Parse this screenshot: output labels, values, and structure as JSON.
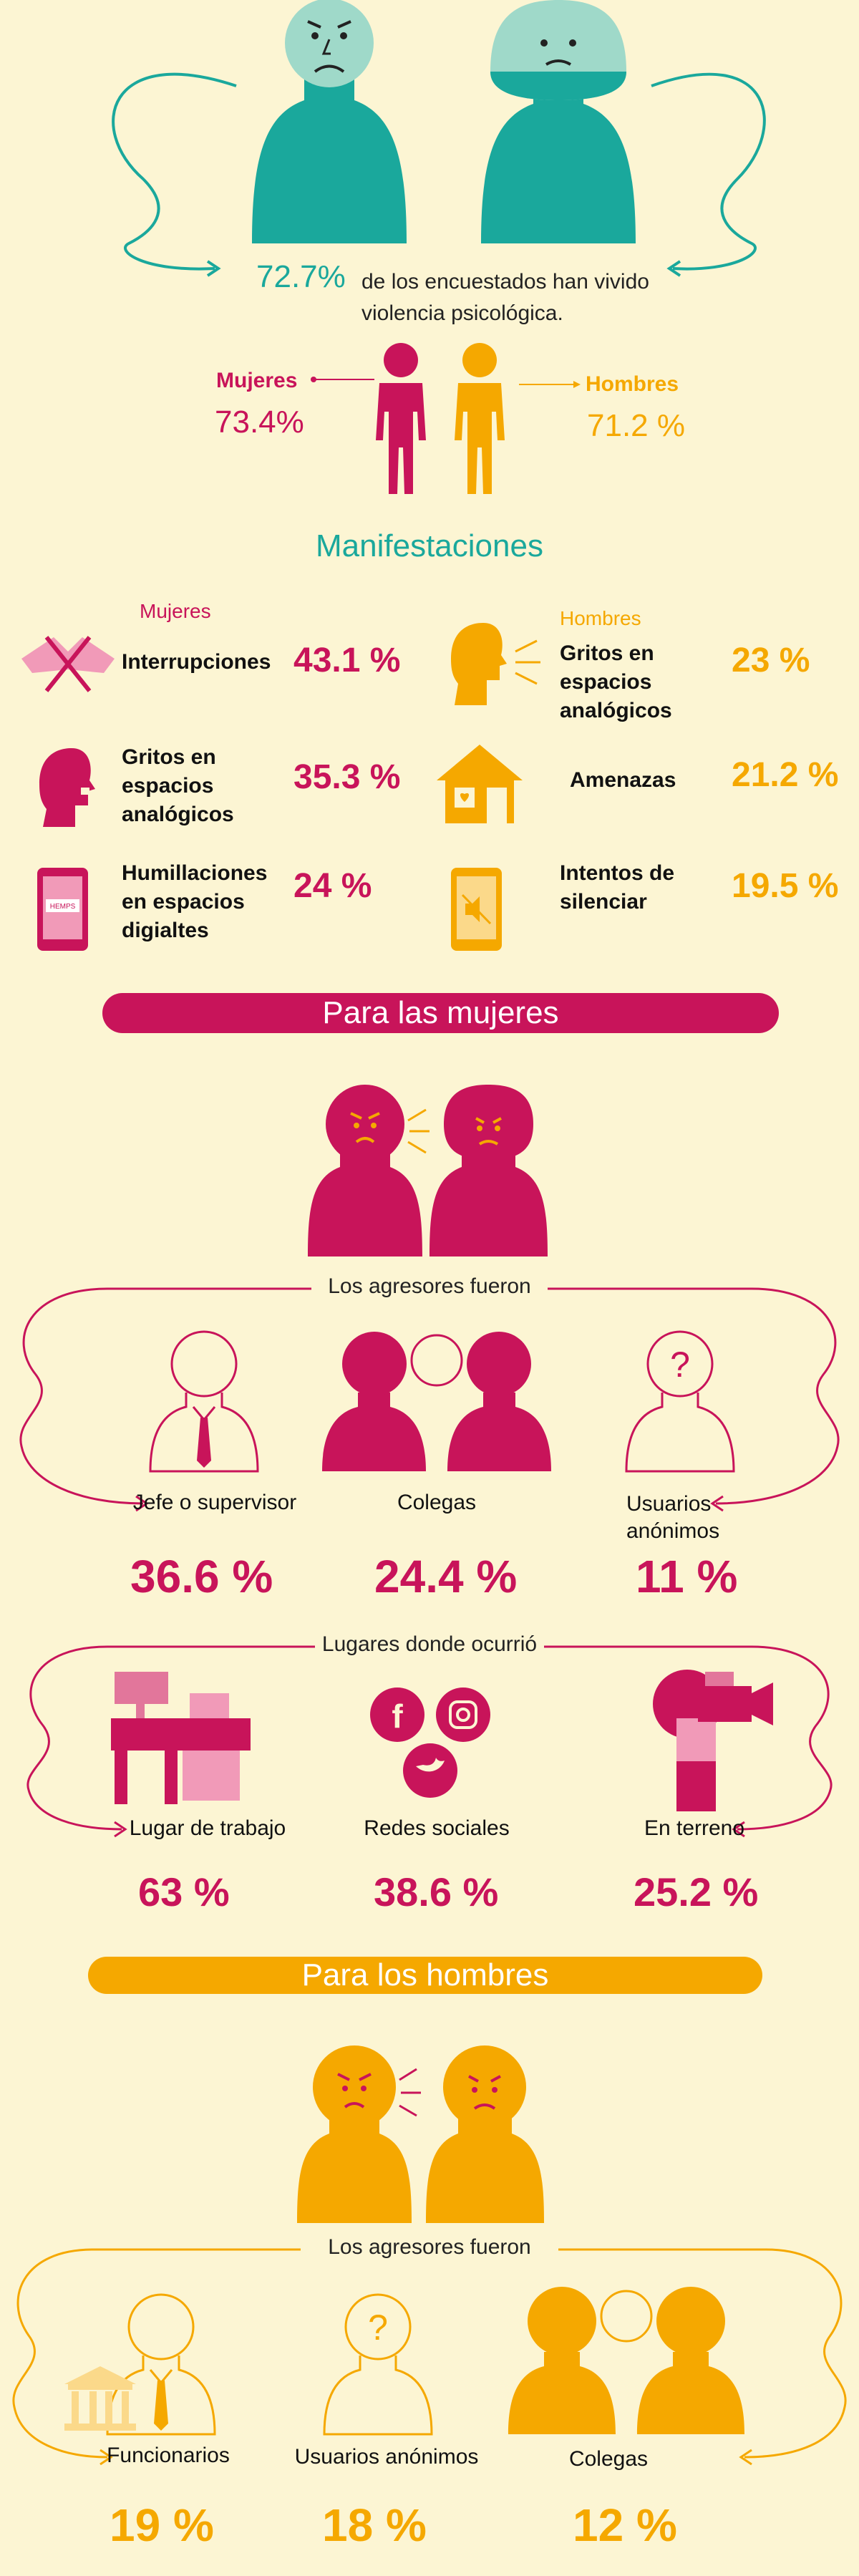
{
  "colors": {
    "background": "#fcf5d3",
    "teal": "#1aa89c",
    "light_teal": "#9fd9c9",
    "magenta": "#c8145a",
    "gold": "#f5a800",
    "pink": "#f19ab8"
  },
  "intro": {
    "percent": "72.7%",
    "text": "de los encuestados han vivido violencia psicológica."
  },
  "gender_split": {
    "women": {
      "label": "Mujeres",
      "percent": "73.4%"
    },
    "men": {
      "label": "Hombres",
      "percent": "71.2 %"
    }
  },
  "manifestaciones": {
    "title": "Manifestaciones",
    "women": {
      "label": "Mujeres",
      "items": [
        {
          "label": "Interrupciones",
          "percent": "43.1 %",
          "icon": "crossed-hands-icon"
        },
        {
          "label": "Gritos en espacios analógicos",
          "percent": "35.3 %",
          "icon": "shouting-head-icon"
        },
        {
          "label": "Humillaciones en espacios digialtes",
          "percent": "24 %",
          "icon": "phone-message-icon"
        }
      ]
    },
    "men": {
      "label": "Hombres",
      "items": [
        {
          "label": "Gritos en espacios analógicos",
          "percent": "23 %",
          "icon": "shouting-head-icon"
        },
        {
          "label": "Amenazas",
          "percent": "21.2 %",
          "icon": "house-heart-icon"
        },
        {
          "label": "Intentos de silenciar",
          "percent": "19.5 %",
          "icon": "phone-mute-icon"
        }
      ]
    }
  },
  "women_section": {
    "banner": "Para las mujeres",
    "aggressors_title": "Los agresores fueron",
    "aggressors": [
      {
        "label": "Jefe o supervisor",
        "percent": "36.6 %"
      },
      {
        "label": "Colegas",
        "percent": "24.4 %"
      },
      {
        "label": "Usuarios anónimos",
        "percent": "11 %"
      }
    ],
    "places_title": "Lugares donde ocurrió",
    "places": [
      {
        "label": "Lugar de trabajo",
        "percent": "63 %"
      },
      {
        "label": "Redes sociales",
        "percent": "38.6 %"
      },
      {
        "label": "En terreno",
        "percent": "25.2 %"
      }
    ],
    "phone_text": "HEMPS"
  },
  "men_section": {
    "banner": "Para los hombres",
    "aggressors_title": "Los agresores fueron",
    "aggressors": [
      {
        "label": "Funcionarios",
        "percent": "19 %"
      },
      {
        "label": "Usuarios anónimos",
        "percent": "18 %"
      },
      {
        "label": "Colegas",
        "percent": "12 %"
      }
    ]
  }
}
